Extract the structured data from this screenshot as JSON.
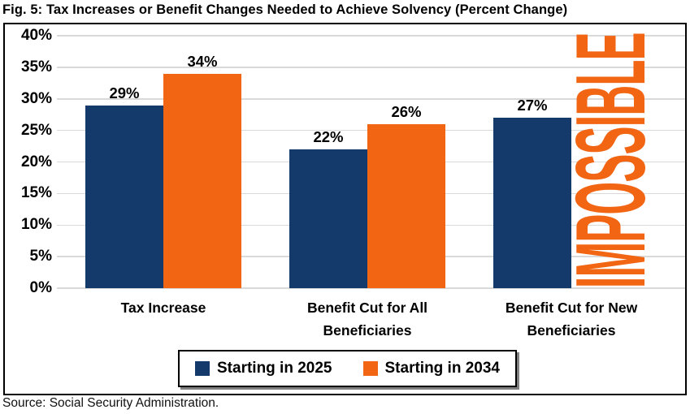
{
  "title": "Fig. 5: Tax Increases or Benefit Changes Needed to Achieve Solvency (Percent Change)",
  "source_note": "Source: Social Security Administration.",
  "colors": {
    "series_2025": "#14396B",
    "series_2034": "#F26513",
    "gridline": "#D9D9D9",
    "box_border": "#000000",
    "legend_shadow": "#808080",
    "label_text": "#000000"
  },
  "chart_data": {
    "type": "bar",
    "title": "Fig. 5: Tax Increases or Benefit Changes Needed to Achieve Solvency (Percent Change)",
    "categories": [
      "Tax Increase",
      "Benefit Cut for All\nBeneficiaries",
      "Benefit Cut for New\nBeneficiaries"
    ],
    "series": [
      {
        "name": "Starting in 2025",
        "color": "#14396B",
        "values": [
          29,
          22,
          27
        ],
        "data_labels": [
          "29%",
          "22%",
          "27%"
        ]
      },
      {
        "name": "Starting in 2034",
        "color": "#F26513",
        "values": [
          34,
          26,
          null
        ],
        "data_labels": [
          "34%",
          "26%",
          null
        ]
      }
    ],
    "annotation": {
      "text": "IMPOSSIBLE",
      "color": "#F26513",
      "rotation_deg": -90,
      "location": "in place of the missing 'Starting in 2034' bar for 'Benefit Cut for New Beneficiaries'"
    },
    "y_axis": {
      "min": 0,
      "max": 40,
      "unit": "%",
      "tick_values": [
        0,
        5,
        10,
        15,
        20,
        25,
        30,
        35,
        40
      ],
      "tick_labels": [
        "0%",
        "5%",
        "10%",
        "15%",
        "20%",
        "25%",
        "30%",
        "35%",
        "40%"
      ]
    },
    "xlabel": "",
    "ylabel": "",
    "grid": true,
    "legend_position": "bottom-center"
  }
}
